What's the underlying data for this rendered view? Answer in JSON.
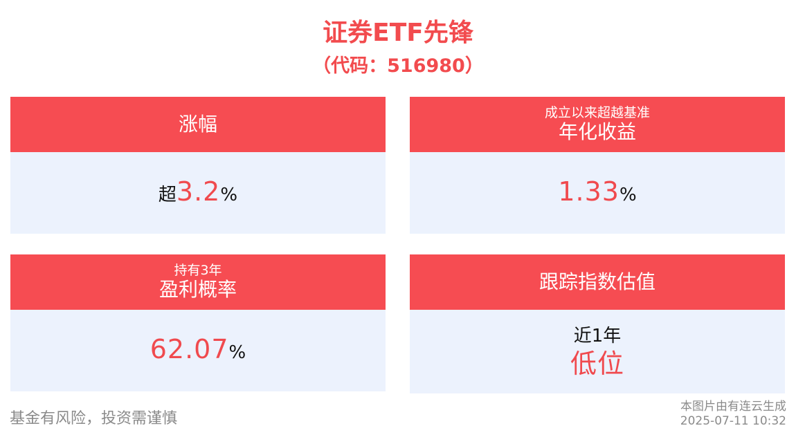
{
  "header": {
    "title": "证券ETF先锋",
    "subtitle": "（代码：516980）"
  },
  "cards": [
    {
      "head_small": "",
      "head_main": "涨幅",
      "prefix": "超",
      "value": "3.2",
      "suffix": "%"
    },
    {
      "head_small": "成立以来超越基准",
      "head_main": "年化收益",
      "prefix": "",
      "value": "1.33",
      "suffix": "%"
    },
    {
      "head_small": "持有3年",
      "head_main": "盈利概率",
      "prefix": "",
      "value": "62.07",
      "suffix": "%"
    },
    {
      "head_small": "",
      "head_main": "跟踪指数估值",
      "line1": "近1年",
      "line2": "低位"
    }
  ],
  "footer": {
    "disclaimer": "基金有风险，投资需谨慎",
    "source": "本图片由有连云生成",
    "timestamp": "2025-07-11 10:32"
  },
  "colors": {
    "accent": "#f64c52",
    "value_red": "#f04a4e",
    "card_bg": "#ecf2fd"
  }
}
